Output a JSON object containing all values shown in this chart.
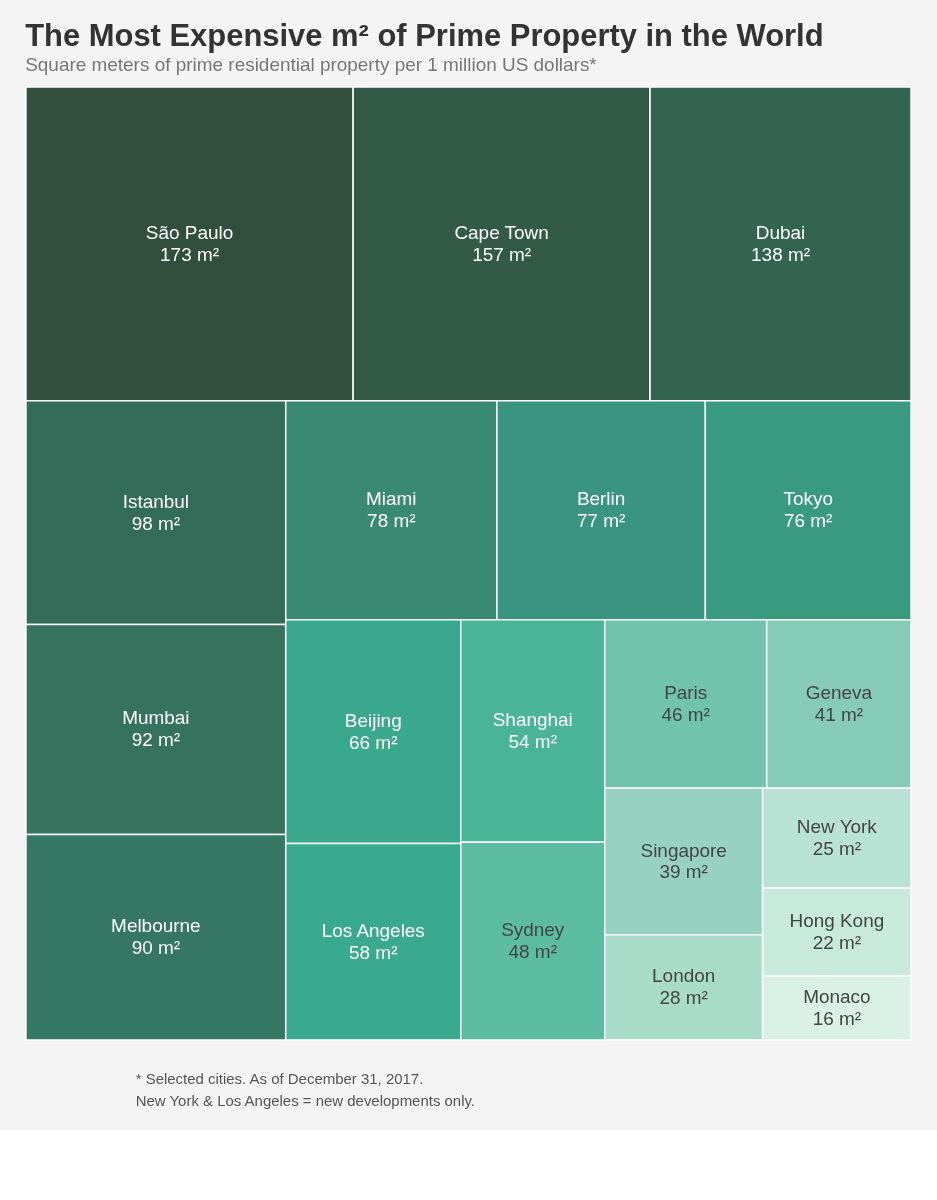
{
  "chart_data": {
    "type": "other",
    "title": "The Most Expensive m² of Prime Property in the World",
    "subtitle": "Square meters of prime residential property per 1 million US dollars*",
    "categories": [
      "São Paulo",
      "Cape Town",
      "Dubai",
      "Istanbul",
      "Mumbai",
      "Melbourne",
      "Miami",
      "Berlin",
      "Tokyo",
      "Beijing",
      "Los Angeles",
      "Shanghai",
      "Sydney",
      "Paris",
      "Geneva",
      "Singapore",
      "London",
      "New York",
      "Hong Kong",
      "Monaco"
    ],
    "values": [
      173,
      157,
      138,
      98,
      92,
      90,
      78,
      77,
      76,
      66,
      58,
      54,
      48,
      46,
      41,
      39,
      28,
      25,
      22,
      16
    ],
    "value_labels": [
      "173 m²",
      "157 m²",
      "138 m²",
      "98 m²",
      "92 m²",
      "90 m²",
      "78 m²",
      "77 m²",
      "76 m²",
      "66 m²",
      "58 m²",
      "54 m²",
      "48 m²",
      "46 m²",
      "41 m²",
      "39 m²",
      "28 m²",
      "25 m²",
      "22 m²",
      "16 m²"
    ],
    "colors": [
      "#324e3c",
      "#325a46",
      "#336450",
      "#336c58",
      "#35735f",
      "#357763",
      "#3a8a72",
      "#3a9580",
      "#3a9a80",
      "#3aa88c",
      "#3aaa8e",
      "#4ab497",
      "#5cbca0",
      "#70c4ac",
      "#86cbb6",
      "#96d2bf",
      "#a8dcc9",
      "#b8e3d4",
      "#c8eadd",
      "#d8f0e6"
    ],
    "annotations": [
      "* Selected cities. As of December 31, 2017.",
      "New York & Los Angeles = new developments only."
    ]
  }
}
